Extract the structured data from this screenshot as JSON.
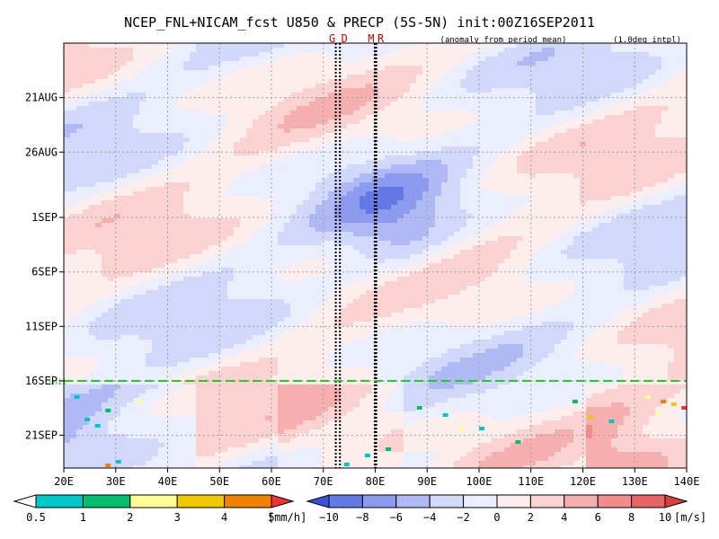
{
  "chart_data": {
    "type": "heatmap",
    "title": "NCEP_FNL+NICAM_fcst U850 & PRECP (5S-5N) init:00Z16SEP2011",
    "subtitle_left": "(anomaly from period mean)",
    "subtitle_right": "(1.0deg intpl)",
    "x_axis": {
      "range": [
        20,
        140
      ],
      "ticks": [
        20,
        30,
        40,
        50,
        60,
        70,
        80,
        90,
        100,
        110,
        120,
        130,
        140
      ],
      "tick_labels": [
        "20E",
        "30E",
        "40E",
        "50E",
        "60E",
        "70E",
        "80E",
        "90E",
        "100E",
        "110E",
        "120E",
        "130E",
        "140E"
      ]
    },
    "y_axis": {
      "range_days": [
        "16AUG2011",
        "24SEP2011"
      ],
      "tick_labels": [
        "21AUG",
        "26AUG",
        "1SEP",
        "6SEP",
        "11SEP",
        "16SEP",
        "21SEP"
      ],
      "tick_dates": [
        "2011-08-21",
        "2011-08-26",
        "2011-09-01",
        "2011-09-06",
        "2011-09-11",
        "2011-09-16",
        "2011-09-21"
      ]
    },
    "grid": true,
    "site_lines": [
      {
        "label": "G",
        "lon": 72.4
      },
      {
        "label": "D",
        "lon": 73.2
      },
      {
        "label": "M",
        "lon": 79.9
      },
      {
        "label": "R",
        "lon": 80.2
      }
    ],
    "init_line": {
      "label": "init",
      "date": "2011-09-16"
    },
    "precip_colorbar": {
      "unit": "[mm/h]",
      "levels": [
        "0.5",
        "1",
        "2",
        "3",
        "4",
        "5"
      ],
      "colors": [
        "#ffffff",
        "#00c8c8",
        "#00be6e",
        "#ffff96",
        "#f0c800",
        "#f08200",
        "#f03232"
      ]
    },
    "u850_colorbar": {
      "unit": "[m/s]",
      "levels": [
        "−10",
        "−8",
        "−6",
        "−4",
        "−2",
        "0",
        "2",
        "4",
        "6",
        "8",
        "10"
      ],
      "colors": [
        "#3c50dc",
        "#6478e6",
        "#8c9bf0",
        "#afbaf5",
        "#d2d8fa",
        "#ebeefd",
        "#fdeeee",
        "#fad2d2",
        "#f5afaf",
        "#f08c8c",
        "#e66464",
        "#dc3c3c"
      ]
    }
  }
}
